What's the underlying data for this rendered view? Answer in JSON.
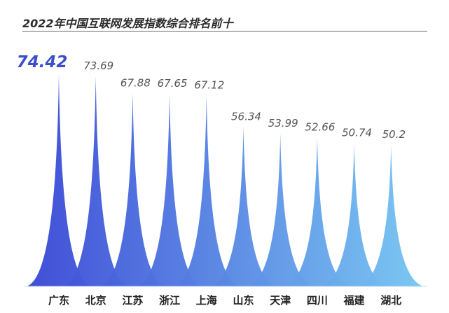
{
  "title": "2022年中国互联网发展指数综合排名前十",
  "chart_data": {
    "type": "bar",
    "title": "2022年中国互联网发展指数综合排名前十",
    "xlabel": "",
    "ylabel": "",
    "categories": [
      "广东",
      "北京",
      "江苏",
      "浙江",
      "上海",
      "山东",
      "天津",
      "四川",
      "福建",
      "湖北"
    ],
    "values": [
      74.42,
      73.69,
      67.88,
      67.65,
      67.12,
      56.34,
      53.99,
      52.66,
      50.74,
      50.2
    ],
    "value_labels": [
      "74.42",
      "73.69",
      "67.88",
      "67.65",
      "67.12",
      "56.34",
      "53.99",
      "52.66",
      "50.74",
      "50.2"
    ],
    "highlight_index": 0,
    "colors": {
      "highlight_label": "#3a4fc8",
      "gradient_start": "#3b48d6",
      "gradient_end": "#77c8f2"
    }
  }
}
